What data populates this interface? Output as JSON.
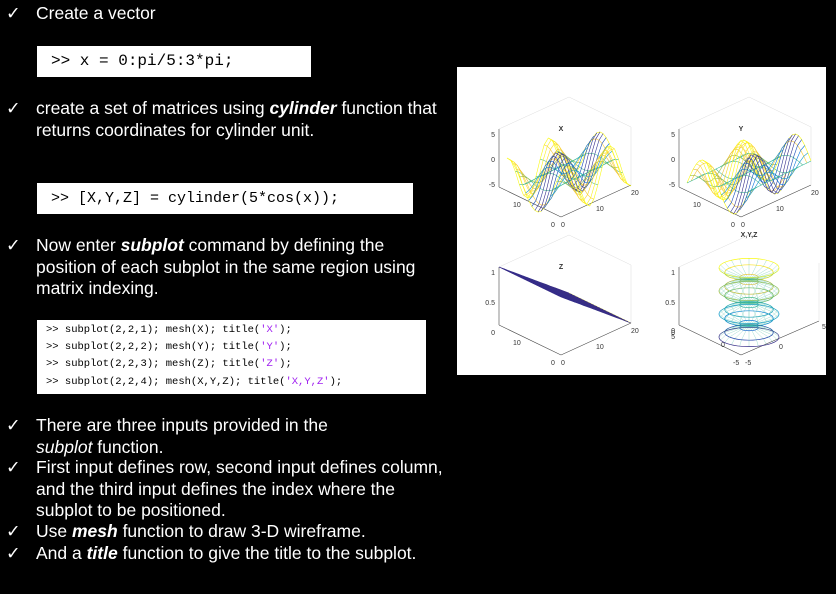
{
  "bullets": [
    {
      "segments": [
        {
          "t": "Create a vector",
          "s": "n"
        }
      ]
    },
    {
      "segments": [
        {
          "t": "create a set of matrices using ",
          "s": "n"
        },
        {
          "t": "cylinder",
          "s": "bi"
        },
        {
          "t": " function that returns coordinates for cylinder unit.",
          "s": "n"
        }
      ]
    },
    {
      "segments": [
        {
          "t": "Now enter ",
          "s": "n"
        },
        {
          "t": "subplot",
          "s": "bi"
        },
        {
          "t": " command by defining the position of each subplot in the same region using matrix indexing.",
          "s": "n"
        }
      ]
    },
    {
      "segments": [
        {
          "t": "There are three inputs provided in the ",
          "s": "n"
        },
        {
          "t": "subplot",
          "s": "i"
        },
        {
          "t": " function.",
          "s": "n"
        }
      ]
    },
    {
      "segments": [
        {
          "t": "First input defines row, second input defines column, and the third input defines the index where the subplot to be positioned.",
          "s": "n"
        }
      ]
    },
    {
      "segments": [
        {
          "t": "Use ",
          "s": "n"
        },
        {
          "t": "mesh",
          "s": "bi"
        },
        {
          "t": " function to draw 3-D wireframe.",
          "s": "n"
        }
      ]
    },
    {
      "segments": [
        {
          "t": "And a ",
          "s": "n"
        },
        {
          "t": "title",
          "s": "bi"
        },
        {
          "t": " function to give the title to the subplot.",
          "s": "n"
        }
      ]
    }
  ],
  "code": {
    "vector": ">> x = 0:pi/5:3*pi;",
    "cylinder": ">> [X,Y,Z] = cylinder(5*cos(x));",
    "subplot_lines": [
      {
        "pre": ">> subplot(2,2,1); mesh(X); title(",
        "str": "'X'",
        "post": ");"
      },
      {
        "pre": ">> subplot(2,2,2); mesh(Y); title(",
        "str": "'Y'",
        "post": ");"
      },
      {
        "pre": ">> subplot(2,2,3); mesh(Z); title(",
        "str": "'Z'",
        "post": ");"
      },
      {
        "pre": ">> subplot(2,2,4); mesh(X,Y,Z); title(",
        "str": "'X,Y,Z'",
        "post": ");"
      }
    ]
  },
  "figure": {
    "subplots": [
      {
        "title": "X",
        "zticks": [
          "5",
          "0",
          "-5"
        ],
        "xticks": [
          "10",
          "0"
        ],
        "yticks": [
          "0",
          "20"
        ],
        "ymid": "10"
      },
      {
        "title": "Y",
        "zticks": [
          "5",
          "0",
          "-5"
        ],
        "xticks": [
          "10",
          "0"
        ],
        "yticks": [
          "0",
          "20"
        ],
        "ymid": "10"
      },
      {
        "title": "Z",
        "zticks": [
          "1",
          "0.5",
          "0"
        ],
        "xticks": [
          "10",
          "0"
        ],
        "yticks": [
          "0",
          "20"
        ],
        "ymid": "10"
      },
      {
        "title": "X,Y,Z",
        "zticks": [
          "1",
          "0.5",
          "0"
        ],
        "zsmall": [
          "0",
          "5"
        ],
        "xticks": [
          "0",
          "-5"
        ],
        "yticks": [
          "-5",
          "5"
        ],
        "ymid": "0"
      }
    ]
  }
}
